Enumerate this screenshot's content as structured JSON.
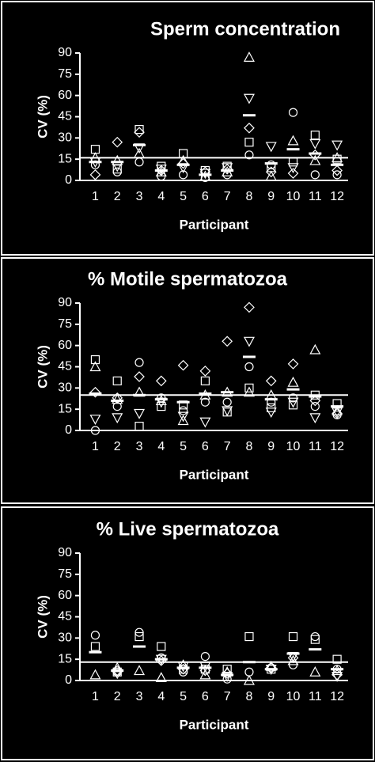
{
  "chart_data": [
    {
      "type": "scatter",
      "title": "Sperm concentration",
      "xlabel": "Participant",
      "ylabel": "CV (%)",
      "color": "#ffffff",
      "x": [
        1,
        2,
        3,
        4,
        5,
        6,
        7,
        8,
        9,
        10,
        11,
        12
      ],
      "xlim": [
        0.3,
        12.5
      ],
      "xticks": [
        1,
        2,
        3,
        4,
        5,
        6,
        7,
        8,
        9,
        10,
        11,
        12
      ],
      "ylim": [
        0,
        90
      ],
      "yticks": [
        0,
        15,
        30,
        45,
        60,
        75,
        90
      ],
      "hline": 16,
      "series": [
        {
          "marker": "square",
          "values": [
            22,
            8,
            36,
            10,
            19,
            7,
            10,
            27,
            9,
            13,
            32,
            15
          ]
        },
        {
          "marker": "triangle",
          "values": [
            16,
            14,
            19,
            6,
            14,
            3,
            6,
            87,
            3,
            28,
            14,
            16
          ]
        },
        {
          "marker": "triangle-down",
          "values": [
            13,
            10,
            23,
            8,
            9,
            5,
            9,
            58,
            24,
            9,
            26,
            25
          ]
        },
        {
          "marker": "circle",
          "values": [
            11,
            6,
            13,
            3,
            4,
            2,
            4,
            18,
            11,
            48,
            4,
            4
          ]
        },
        {
          "marker": "diamond",
          "values": [
            4,
            27,
            34,
            7,
            12,
            6,
            8,
            37,
            6,
            5,
            18,
            7
          ]
        },
        {
          "marker": "bar",
          "values": [
            13,
            13,
            25,
            7,
            11,
            4,
            7,
            46,
            12,
            22,
            19,
            11
          ]
        }
      ]
    },
    {
      "type": "scatter",
      "title": "% Motile spermatozoa",
      "xlabel": "Participant",
      "ylabel": "CV (%)",
      "color": "#ffffff",
      "x": [
        1,
        2,
        3,
        4,
        5,
        6,
        7,
        8,
        9,
        10,
        11,
        12
      ],
      "xlim": [
        0.3,
        12.5
      ],
      "xticks": [
        1,
        2,
        3,
        4,
        5,
        6,
        7,
        8,
        9,
        10,
        11,
        12
      ],
      "ylim": [
        0,
        90
      ],
      "yticks": [
        0,
        15,
        30,
        45,
        60,
        75,
        90
      ],
      "hline": 25,
      "series": [
        {
          "marker": "square",
          "values": [
            50,
            35,
            3,
            17,
            18,
            35,
            13,
            30,
            16,
            18,
            25,
            19
          ]
        },
        {
          "marker": "triangle",
          "values": [
            45,
            22,
            27,
            21,
            7,
            25,
            27,
            27,
            25,
            34,
            57,
            14
          ]
        },
        {
          "marker": "triangle-down",
          "values": [
            8,
            9,
            12,
            20,
            10,
            6,
            14,
            63,
            13,
            20,
            9,
            13
          ]
        },
        {
          "marker": "circle",
          "values": [
            0,
            17,
            48,
            23,
            14,
            20,
            20,
            45,
            20,
            23,
            17,
            11
          ]
        },
        {
          "marker": "diamond",
          "values": [
            27,
            23,
            38,
            35,
            46,
            42,
            63,
            87,
            35,
            47,
            21,
            12
          ]
        },
        {
          "marker": "bar",
          "values": [
            26,
            21,
            25,
            22,
            20,
            26,
            27,
            52,
            22,
            29,
            24,
            17
          ]
        }
      ]
    },
    {
      "type": "scatter",
      "title": "% Live spermatozoa",
      "xlabel": "Participant",
      "ylabel": "CV (%)",
      "color": "#ffffff",
      "x": [
        1,
        2,
        3,
        4,
        5,
        6,
        7,
        8,
        9,
        10,
        11,
        12
      ],
      "xlim": [
        0.3,
        12.5
      ],
      "xticks": [
        1,
        2,
        3,
        4,
        5,
        6,
        7,
        8,
        9,
        10,
        11,
        12
      ],
      "ylim": [
        0,
        90
      ],
      "yticks": [
        0,
        15,
        30,
        45,
        60,
        75,
        90
      ],
      "hline": 13,
      "series": [
        {
          "marker": "square",
          "values": [
            24,
            6,
            31,
            24,
            8,
            8,
            8,
            31,
            8,
            31,
            29,
            15
          ]
        },
        {
          "marker": "triangle",
          "values": [
            4,
            9,
            7,
            2,
            11,
            4,
            6,
            0,
            10,
            14,
            6,
            7
          ]
        },
        {
          "marker": "triangle-down",
          "values": [
            null,
            5,
            null,
            15,
            10,
            10,
            3,
            null,
            8,
            17,
            null,
            3
          ]
        },
        {
          "marker": "circle",
          "values": [
            32,
            6,
            34,
            16,
            6,
            17,
            1,
            6,
            9,
            11,
            31,
            8
          ]
        },
        {
          "marker": "diamond",
          "values": [
            null,
            7,
            null,
            14,
            8,
            7,
            5,
            null,
            9,
            16,
            null,
            4
          ]
        },
        {
          "marker": "bar",
          "values": [
            20,
            7,
            24,
            15,
            9,
            9,
            4,
            13,
            8,
            19,
            22,
            8
          ]
        }
      ]
    }
  ]
}
